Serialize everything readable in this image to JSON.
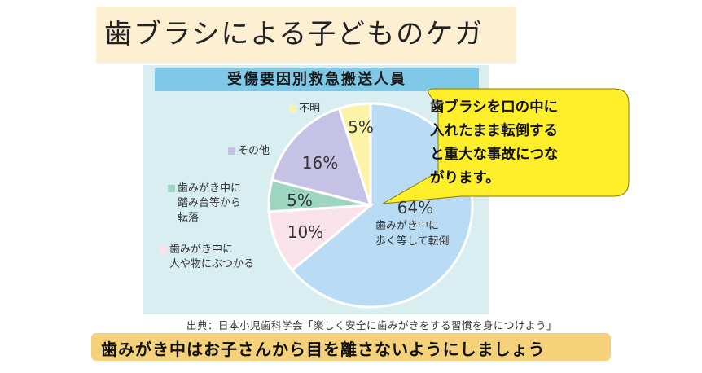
{
  "title": "歯ブラシによる子どものケガ",
  "chart_data": {
    "type": "pie",
    "title": "受傷要因別救急搬送人員",
    "slices": [
      {
        "label": "歯みがき中に歩く等して転倒",
        "value": 64,
        "display": "64%",
        "color": "#b9dcf4"
      },
      {
        "label": "歯みがき中に人や物にぶつかる",
        "value": 10,
        "display": "10%",
        "color": "#f9e2ea"
      },
      {
        "label": "歯みがき中に踏み台等から転落",
        "value": 5,
        "display": "5%",
        "color": "#9cd6c0"
      },
      {
        "label": "その他",
        "value": 16,
        "display": "16%",
        "color": "#c6c2e6"
      },
      {
        "label": "不明",
        "value": 5,
        "display": "5%",
        "color": "#fdf3a6"
      }
    ]
  },
  "legend": {
    "unknown": "不明",
    "other": "その他",
    "fall_line1": "歯みがき中に",
    "fall_line2": "踏み台等から",
    "fall_line3": "転落",
    "bump_line1": "歯みがき中に",
    "bump_line2": "人や物にぶつかる"
  },
  "inner_label": {
    "line1": "歯みがき中に",
    "line2": "歩く等して転倒"
  },
  "callout": {
    "line1": "歯ブラシを口の中に",
    "line2": "入れたまま転倒する",
    "line3": "と重大な事故につな",
    "line4": "がります。",
    "color": "#ffef2b"
  },
  "source": "出典：日本小児歯科学会「楽しく安全に歯みがきをする習慣を身につけよう」",
  "bottom_note": "歯みがき中はお子さんから目を離さないようにしましょう"
}
